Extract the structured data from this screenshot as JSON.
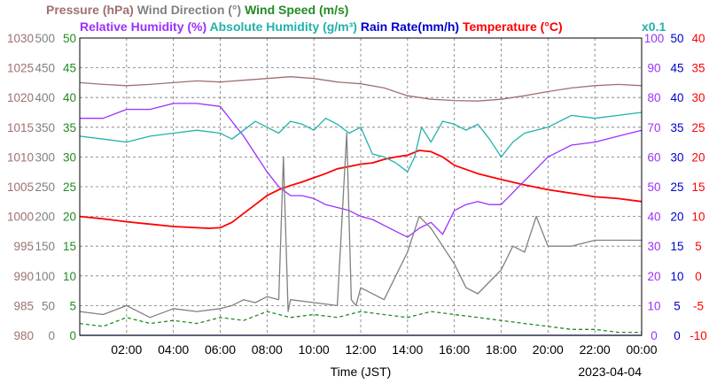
{
  "chart_data": {
    "type": "line",
    "date": "2023-04-04",
    "xlabel": "Time (JST)",
    "x_ticks": [
      "02:00",
      "04:00",
      "06:00",
      "08:00",
      "10:00",
      "12:00",
      "14:00",
      "16:00",
      "18:00",
      "20:00",
      "22:00",
      "00:00"
    ],
    "x_range_hours": [
      0,
      24
    ],
    "grid": true,
    "legend_row1": [
      {
        "text": "Pressure (hPa)",
        "color": "#A07070"
      },
      {
        "text": "Wind Direction (°)",
        "color": "#808080"
      },
      {
        "text": "Wind Speed (m/s)",
        "color": "#228B22"
      }
    ],
    "legend_row2": [
      {
        "text": "Relative Humidity (%)",
        "color": "#9B30FF"
      },
      {
        "text": "Absolute Humidity (g/m³)",
        "color": "#20B2AA"
      },
      {
        "text": "Rain Rate(mm/h)",
        "color": "#0000CD"
      },
      {
        "text": "Temperature (°C)",
        "color": "#FF0000"
      }
    ],
    "x01_label": "x0.1",
    "axes": {
      "pressure": {
        "label": "Pressure (hPa)",
        "color": "#A07070",
        "range": [
          980,
          1030
        ],
        "ticks": [
          "1030",
          "1025",
          "1020",
          "1015",
          "1010",
          "1005",
          "1000",
          "995",
          "990",
          "985",
          "980"
        ]
      },
      "wind_direction": {
        "label": "Wind Direction (°)",
        "color": "#808080",
        "range": [
          0,
          500
        ],
        "ticks": [
          "500",
          "450",
          "400",
          "350",
          "300",
          "250",
          "200",
          "150",
          "100",
          "50",
          "0"
        ]
      },
      "wind_speed": {
        "label": "Wind Speed (m/s)",
        "color": "#228B22",
        "range": [
          0,
          50
        ],
        "ticks": [
          "50",
          "45",
          "40",
          "35",
          "30",
          "25",
          "20",
          "15",
          "10",
          "5",
          "0"
        ]
      },
      "relative_humidity": {
        "label": "Relative Humidity (%)",
        "color": "#9B30FF",
        "range": [
          0,
          100
        ],
        "ticks": [
          "100",
          "90",
          "80",
          "70",
          "60",
          "50",
          "40",
          "30",
          "20",
          "10",
          "0"
        ]
      },
      "rain_rate": {
        "label": "Rain Rate(mm/h)",
        "color": "#0000CD",
        "range": [
          0,
          50
        ],
        "ticks": [
          "50",
          "45",
          "40",
          "35",
          "30",
          "25",
          "20",
          "15",
          "10",
          "5",
          "0"
        ]
      },
      "temperature": {
        "label": "Temperature (°C)",
        "color": "#FF0000",
        "range": [
          -10,
          40
        ],
        "ticks": [
          "40",
          "35",
          "30",
          "25",
          "20",
          "15",
          "10",
          "5",
          "0",
          "-5",
          "-10"
        ]
      }
    },
    "series": [
      {
        "name": "Pressure (hPa)",
        "axis": "pressure",
        "color": "#A07070",
        "x": [
          0,
          1,
          2,
          3,
          4,
          5,
          6,
          7,
          8,
          9,
          10,
          11,
          12,
          13,
          14,
          15,
          16,
          17,
          18,
          19,
          20,
          21,
          22,
          23,
          24
        ],
        "y": [
          1022.5,
          1022.2,
          1022.0,
          1022.2,
          1022.5,
          1022.8,
          1022.6,
          1022.9,
          1023.2,
          1023.5,
          1023.2,
          1022.6,
          1022.3,
          1021.6,
          1020.3,
          1019.7,
          1019.5,
          1019.4,
          1019.7,
          1020.3,
          1021.0,
          1021.6,
          1022.0,
          1022.2,
          1022.0
        ]
      },
      {
        "name": "Temperature (°C)",
        "axis": "temperature",
        "color": "#FF0000",
        "x": [
          0,
          1,
          2,
          3,
          4,
          5,
          5.5,
          6,
          6.5,
          7,
          7.5,
          8,
          8.5,
          9,
          9.5,
          10,
          10.5,
          11,
          11.5,
          12,
          12.5,
          13,
          13.5,
          14,
          14.5,
          15,
          15.5,
          16,
          17,
          18,
          19,
          20,
          21,
          22,
          23,
          24
        ],
        "y": [
          10.0,
          9.6,
          9.1,
          8.7,
          8.3,
          8.1,
          8.0,
          8.1,
          9.0,
          10.5,
          12.0,
          13.5,
          14.5,
          15.2,
          15.8,
          16.5,
          17.2,
          18.0,
          18.4,
          18.8,
          19.0,
          19.6,
          20.0,
          20.3,
          21.1,
          20.9,
          20.0,
          18.6,
          17.2,
          16.2,
          15.3,
          14.5,
          13.9,
          13.3,
          13.0,
          12.5
        ]
      },
      {
        "name": "Relative Humidity (%)",
        "axis": "relative_humidity",
        "color": "#9B30FF",
        "x": [
          0,
          1,
          2,
          3,
          4,
          5,
          6,
          6.5,
          7,
          7.5,
          8,
          8.5,
          9,
          9.5,
          10,
          10.5,
          11,
          11.5,
          12,
          12.5,
          13,
          13.5,
          14,
          14.5,
          15,
          15.5,
          16,
          16.5,
          17,
          17.5,
          18,
          18.5,
          19,
          20,
          21,
          22,
          23,
          24
        ],
        "y": [
          73,
          73,
          76,
          76,
          78,
          78,
          77,
          72,
          67,
          61,
          55,
          50,
          47,
          47,
          46,
          44,
          43,
          42,
          40,
          39,
          37,
          35,
          33,
          36,
          38,
          34,
          42,
          44,
          45,
          44,
          44,
          48,
          52,
          60,
          64,
          65,
          67,
          69
        ]
      },
      {
        "name": "Absolute Humidity (g/m³)",
        "axis": "relative_humidity",
        "color": "#20B2AA",
        "x": [
          0,
          1,
          2,
          3,
          4,
          5,
          6,
          6.5,
          7,
          7.5,
          8,
          8.5,
          9,
          9.5,
          10,
          10.5,
          11,
          11.5,
          12,
          12.5,
          13,
          13.5,
          14,
          14.3,
          14.6,
          15,
          15.5,
          16,
          16.5,
          17,
          17.5,
          18,
          18.5,
          19,
          20,
          21,
          22,
          23,
          24
        ],
        "y": [
          67,
          66,
          65,
          67,
          68,
          69,
          68,
          66,
          69,
          72,
          70,
          68,
          72,
          71,
          69,
          73,
          71,
          68,
          70,
          61,
          60,
          58,
          55,
          60,
          70,
          65,
          72,
          71,
          69,
          71,
          66,
          60,
          65,
          68,
          70,
          74,
          73,
          74,
          75
        ]
      },
      {
        "name": "Wind Direction (°)",
        "axis": "wind_direction",
        "color": "#808080",
        "x": [
          0,
          1,
          2,
          3,
          4,
          5,
          6,
          6.5,
          7,
          7.5,
          8,
          8.5,
          8.7,
          8.9,
          9,
          10,
          11,
          11.4,
          11.6,
          11.8,
          12,
          13,
          14,
          14.5,
          15,
          15.5,
          16,
          16.5,
          17,
          17.5,
          18,
          18.5,
          19,
          19.5,
          20,
          21,
          22,
          23,
          24
        ],
        "y": [
          40,
          35,
          50,
          30,
          45,
          40,
          45,
          50,
          60,
          55,
          65,
          60,
          300,
          40,
          60,
          55,
          50,
          340,
          60,
          50,
          80,
          60,
          140,
          200,
          180,
          150,
          120,
          80,
          70,
          90,
          110,
          150,
          140,
          200,
          150,
          150,
          160,
          160,
          160
        ]
      },
      {
        "name": "Wind Speed (m/s)",
        "axis": "wind_speed",
        "color": "#228B22",
        "x": [
          0,
          1,
          2,
          3,
          4,
          5,
          6,
          7,
          8,
          9,
          10,
          11,
          12,
          13,
          14,
          15,
          16,
          17,
          18,
          19,
          20,
          21,
          22,
          23,
          24
        ],
        "y": [
          2,
          1.5,
          3,
          2,
          2.5,
          2,
          3,
          2.5,
          4,
          3,
          3.5,
          3,
          4,
          3.5,
          3,
          4,
          3.5,
          3,
          2.5,
          2,
          1.5,
          1,
          1,
          0.5,
          0.5
        ]
      },
      {
        "name": "Rain Rate(mm/h)",
        "axis": "rain_rate",
        "color": "#0000CD",
        "x": [
          0,
          24
        ],
        "y": [
          0,
          0
        ]
      }
    ]
  }
}
